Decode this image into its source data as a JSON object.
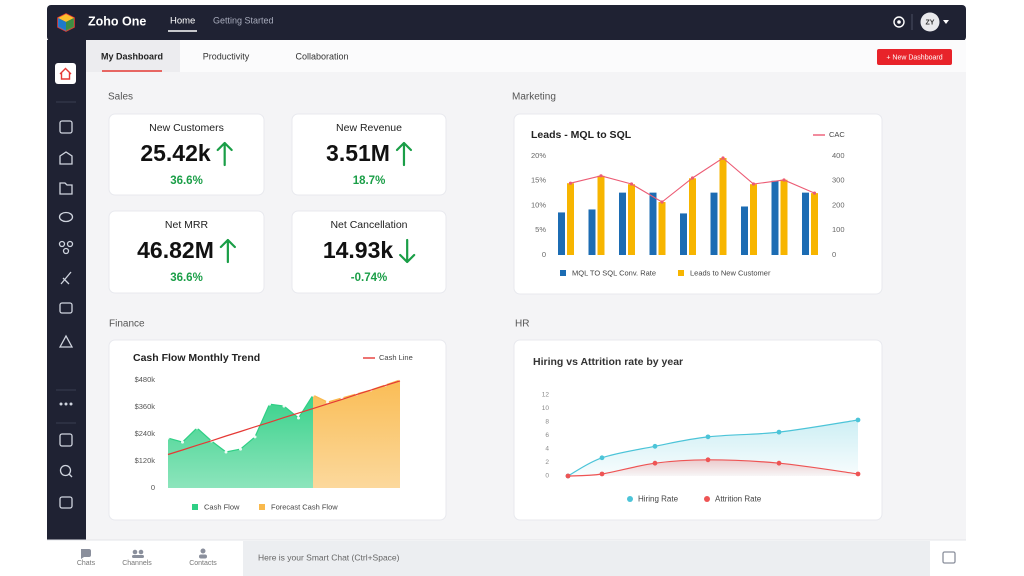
{
  "top_bar": {
    "brand": "Zoho One",
    "nav": [
      "Home",
      "Getting Started"
    ],
    "avatar": "ZY"
  },
  "tabs": [
    "My Dashboard",
    "Productivity",
    "Collaboration"
  ],
  "new_dashboard_button": "+ New Dashboard",
  "sales": {
    "title": "Sales",
    "cards": [
      {
        "label": "New Customers",
        "value": "25.42k",
        "change": "36.6%",
        "trend": "up"
      },
      {
        "label": "New Revenue",
        "value": "3.51M",
        "change": "18.7%",
        "trend": "up"
      },
      {
        "label": "Net MRR",
        "value": "46.82M",
        "change": "36.6%",
        "trend": "up"
      },
      {
        "label": "Net Cancellation",
        "value": "14.93k",
        "change": "-0.74%",
        "trend": "down"
      }
    ]
  },
  "marketing": {
    "title": "Marketing",
    "chart": {
      "type": "bar-line",
      "title": "Leads - MQL to SQL",
      "ylim": [
        0,
        20
      ],
      "yticks": [
        0,
        {
          "value": 5,
          "label": "5%"
        },
        {
          "value": 10,
          "label": "10%"
        },
        {
          "value": 15,
          "label": "15%"
        },
        {
          "value": 20,
          "label": "20%"
        }
      ],
      "y2lim": [
        0,
        400
      ],
      "y2ticks": [
        0,
        100,
        200,
        300,
        400
      ],
      "series": [
        {
          "name": "MQL TO SQL Conv. Rate",
          "type": "bar",
          "color": "#1c6cb3",
          "values": [
            8.6,
            9.2,
            12.6,
            12.6,
            8.4,
            12.6,
            9.8,
            15,
            12.6
          ]
        },
        {
          "name": "Leads to New Customer",
          "type": "bar",
          "color": "#f7b500",
          "values": [
            14.5,
            16,
            14.3,
            10.7,
            15.5,
            19.6,
            14.3,
            15.2,
            12.5
          ]
        },
        {
          "name": "CAC",
          "type": "line",
          "axis": "y2",
          "color": "#ec5b74",
          "values": [
            290,
            320,
            287,
            214,
            311,
            392,
            287,
            303,
            250
          ]
        }
      ]
    }
  },
  "finance": {
    "title": "Finance",
    "chart": {
      "type": "area",
      "title": "Cash Flow Monthly Trend",
      "ylim": [
        0,
        500
      ],
      "yticks": [
        0,
        {
          "value": 120,
          "label": "$120k"
        },
        {
          "value": 240,
          "label": "$240k"
        },
        {
          "value": 360,
          "label": "$360k"
        },
        {
          "value": 480,
          "label": "$480k"
        }
      ],
      "series": [
        {
          "name": "Cash Flow",
          "type": "area",
          "color": "#2fcf85",
          "values": [
            222,
            204,
            267,
            209,
            160,
            173,
            227,
            373,
            364,
            311,
            413,
            null,
            null,
            null,
            null,
            null,
            null
          ]
        },
        {
          "name": "Forecast Cash Flow",
          "type": "area",
          "color": "#f9b94c",
          "values": [
            null,
            null,
            null,
            null,
            null,
            null,
            null,
            null,
            null,
            null,
            413,
            382,
            400,
            418,
            436,
            458,
            480
          ]
        },
        {
          "name": "Cash Line",
          "type": "line",
          "color": "#e53935",
          "values": [
            149,
            169,
            190,
            210,
            231,
            251,
            272,
            292,
            313,
            333,
            353,
            374,
            394,
            415,
            435,
            456,
            476
          ]
        }
      ]
    }
  },
  "hr": {
    "title": "HR",
    "chart": {
      "type": "area",
      "title": "Hiring vs Attrition rate by year",
      "ylim": [
        0,
        12
      ],
      "yticks": [
        0,
        2,
        4,
        6,
        8,
        10,
        12
      ],
      "series": [
        {
          "name": "Hiring Rate",
          "color": "#4cc4d8",
          "values": [
            0,
            2.7,
            4.4,
            5.8,
            6.5,
            8.3
          ]
        },
        {
          "name": "Attrition Rate",
          "color": "#ee5454",
          "values": [
            0,
            0.3,
            1.9,
            2.4,
            1.9,
            0.3
          ]
        }
      ]
    }
  },
  "bottom_bar": {
    "items": [
      "Chats",
      "Channels",
      "Contacts"
    ],
    "chat_placeholder": "Here is your Smart Chat (Ctrl+Space)"
  }
}
